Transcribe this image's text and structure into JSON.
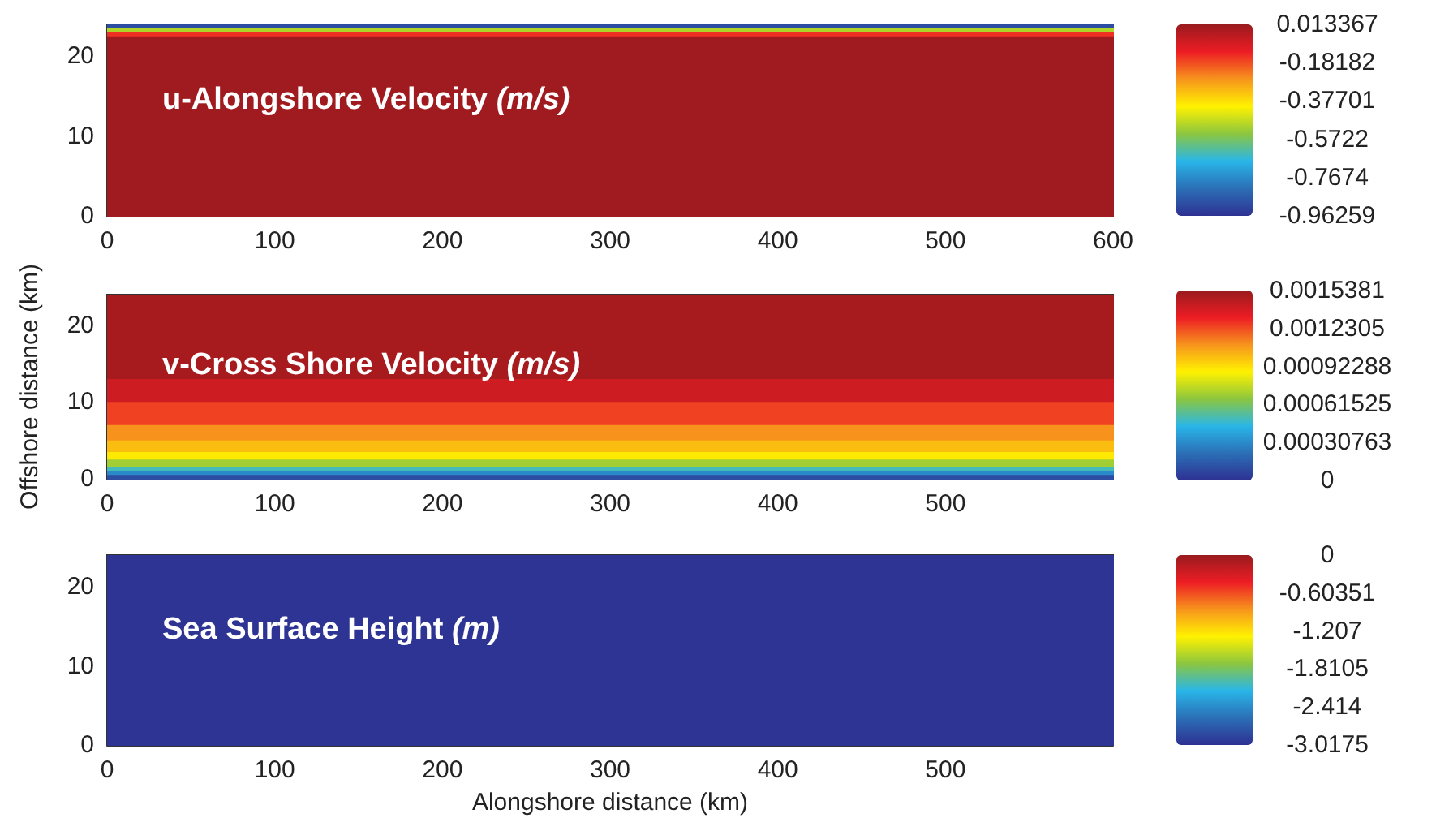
{
  "chart_data": [
    {
      "type": "heatmap",
      "title": "u-Alongshore Velocity (m/s)",
      "xlim": [
        0,
        600
      ],
      "xticks": [
        0,
        100,
        200,
        300,
        400,
        500,
        600
      ],
      "ylim": [
        0,
        24
      ],
      "yticks": [
        0,
        10,
        20
      ],
      "clim": [
        -0.96259,
        0.013367
      ],
      "cticks": [
        0.013367,
        -0.18182,
        -0.37701,
        -0.5722,
        -0.7674,
        -0.96259
      ],
      "cells": [
        [
          -0.9
        ],
        [
          -0.5
        ],
        [
          -0.15
        ],
        [
          0.0
        ],
        [
          0.0
        ],
        [
          0.0
        ],
        [
          0.0
        ],
        [
          0.0
        ],
        [
          0.0
        ],
        [
          0.0
        ],
        [
          0.0
        ],
        [
          0.0
        ],
        [
          0.0
        ],
        [
          0.0
        ],
        [
          0.0
        ],
        [
          0.0
        ],
        [
          0.0
        ],
        [
          0.0
        ],
        [
          0.0
        ],
        [
          0.0
        ],
        [
          0.0
        ],
        [
          0.0
        ],
        [
          0.0
        ],
        [
          0.0
        ],
        [
          0.0
        ],
        [
          0.0
        ],
        [
          0.0
        ],
        [
          0.0
        ],
        [
          0.0
        ],
        [
          0.0
        ],
        [
          0.0
        ],
        [
          0.0
        ],
        [
          0.0
        ],
        [
          0.0
        ],
        [
          0.0
        ],
        [
          0.0
        ],
        [
          0.0
        ],
        [
          0.0
        ],
        [
          0.0
        ],
        [
          0.0
        ],
        [
          0.0
        ],
        [
          0.0
        ],
        [
          0.0
        ],
        [
          0.0
        ],
        [
          0.0
        ],
        [
          0.0
        ],
        [
          0.0
        ],
        [
          0.0
        ]
      ]
    },
    {
      "type": "heatmap",
      "title": "v-Cross Shore Velocity (m/s)",
      "ylabel": "Offshore distance (km)",
      "xlim": [
        0,
        600
      ],
      "xticks": [
        0,
        100,
        200,
        300,
        400,
        500
      ],
      "ylim": [
        0,
        24
      ],
      "yticks": [
        0,
        10,
        20
      ],
      "clim": [
        0,
        0.0015381
      ],
      "cticks": [
        0.0015381,
        0.0012305,
        0.00092288,
        0.00061525,
        0.00030763,
        0
      ],
      "cells": [
        [
          0.0015
        ],
        [
          0.0015
        ],
        [
          0.0015
        ],
        [
          0.0015
        ],
        [
          0.0015
        ],
        [
          0.0015
        ],
        [
          0.0015
        ],
        [
          0.0015
        ],
        [
          0.0015
        ],
        [
          0.0015
        ],
        [
          0.0015
        ],
        [
          0.0015
        ],
        [
          0.0015
        ],
        [
          0.0015
        ],
        [
          0.0015
        ],
        [
          0.0015
        ],
        [
          0.0015
        ],
        [
          0.0015
        ],
        [
          0.0015
        ],
        [
          0.0015
        ],
        [
          0.0015
        ],
        [
          0.0015
        ],
        [
          0.0014
        ],
        [
          0.0014
        ],
        [
          0.0014
        ],
        [
          0.0014
        ],
        [
          0.0014
        ],
        [
          0.0014
        ],
        [
          0.00125
        ],
        [
          0.00125
        ],
        [
          0.00125
        ],
        [
          0.00125
        ],
        [
          0.00125
        ],
        [
          0.00125
        ],
        [
          0.0011
        ],
        [
          0.0011
        ],
        [
          0.0011
        ],
        [
          0.0011
        ],
        [
          0.001
        ],
        [
          0.001
        ],
        [
          0.001
        ],
        [
          0.0009
        ],
        [
          0.0009
        ],
        [
          0.0007
        ],
        [
          0.0007
        ],
        [
          0.0005
        ],
        [
          0.0003
        ],
        [
          0.0001
        ]
      ]
    },
    {
      "type": "heatmap",
      "title": "Sea Surface Height (m)",
      "xlabel": "Alongshore distance (km)",
      "xlim": [
        0,
        600
      ],
      "xticks": [
        0,
        100,
        200,
        300,
        400,
        500
      ],
      "ylim": [
        0,
        24
      ],
      "yticks": [
        0,
        10,
        20
      ],
      "clim": [
        -3.0175,
        0
      ],
      "cticks": [
        0,
        -0.60351,
        -1.207,
        -1.8105,
        -2.414,
        -3.0175
      ],
      "cells": [
        [
          -3.0
        ]
      ]
    }
  ]
}
